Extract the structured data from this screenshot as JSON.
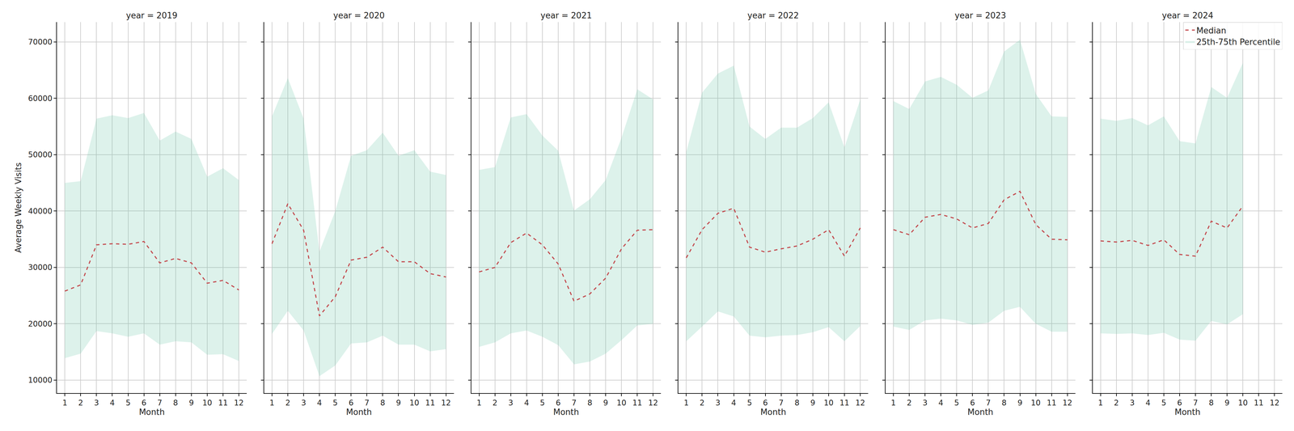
{
  "chart_data": [
    {
      "type": "line",
      "title": "year = 2019",
      "x_label": "Month",
      "y_label": "Average Weekly Visits",
      "x": [
        1,
        2,
        3,
        4,
        5,
        6,
        7,
        8,
        9,
        10,
        11,
        12
      ],
      "xlim": [
        0.5,
        12.5
      ],
      "xticks": [
        1,
        2,
        3,
        4,
        5,
        6,
        7,
        8,
        9,
        10,
        11,
        12
      ],
      "ylim": [
        7700,
        73500
      ],
      "yticks": [
        10000,
        20000,
        30000,
        40000,
        50000,
        60000,
        70000
      ],
      "grid": true,
      "series": [
        {
          "name": "25th-75th Percentile",
          "type": "band",
          "color": "#66c2a5",
          "lower": [
            13900,
            14700,
            18700,
            18300,
            17700,
            18300,
            16300,
            16900,
            16700,
            14500,
            14600,
            13400
          ],
          "upper": [
            45000,
            45300,
            56400,
            57000,
            56500,
            57400,
            52500,
            54100,
            52800,
            46100,
            47600,
            45500
          ]
        },
        {
          "name": "Median",
          "type": "line",
          "color": "#c44e52",
          "line_style": "dashed",
          "values": [
            25800,
            26900,
            34000,
            34200,
            34100,
            34600,
            30800,
            31600,
            30800,
            27200,
            27700,
            26000
          ]
        }
      ]
    },
    {
      "type": "line",
      "title": "year = 2020",
      "x_label": "Month",
      "tick_labels": "x",
      "x": [
        1,
        2,
        3,
        4,
        5,
        6,
        7,
        8,
        9,
        10,
        11,
        12
      ],
      "xlim": [
        0.5,
        12.5
      ],
      "xticks": [
        1,
        2,
        3,
        4,
        5,
        6,
        7,
        8,
        9,
        10,
        11,
        12
      ],
      "ylim": [
        7700,
        73500
      ],
      "yticks": [
        10000,
        20000,
        30000,
        40000,
        50000,
        60000,
        70000
      ],
      "grid": true,
      "series": [
        {
          "name": "25th-75th Percentile",
          "type": "band",
          "color": "#66c2a5",
          "lower": [
            18200,
            22300,
            18800,
            10700,
            12600,
            16500,
            16700,
            17900,
            16300,
            16300,
            15100,
            15500
          ],
          "upper": [
            56800,
            63600,
            56400,
            32800,
            40000,
            49800,
            50800,
            53900,
            49800,
            50800,
            47000,
            46400
          ]
        },
        {
          "name": "Median",
          "type": "line",
          "color": "#c44e52",
          "line_style": "dashed",
          "values": [
            34200,
            41300,
            36600,
            21400,
            24800,
            31300,
            31800,
            33600,
            31000,
            31000,
            28900,
            28300
          ]
        }
      ]
    },
    {
      "type": "line",
      "title": "year = 2021",
      "x_label": "Month",
      "tick_labels": "x",
      "x": [
        1,
        2,
        3,
        4,
        5,
        6,
        7,
        8,
        9,
        10,
        11,
        12
      ],
      "xlim": [
        0.5,
        12.5
      ],
      "xticks": [
        1,
        2,
        3,
        4,
        5,
        6,
        7,
        8,
        9,
        10,
        11,
        12
      ],
      "ylim": [
        7700,
        73500
      ],
      "yticks": [
        10000,
        20000,
        30000,
        40000,
        50000,
        60000,
        70000
      ],
      "grid": true,
      "series": [
        {
          "name": "25th-75th Percentile",
          "type": "band",
          "color": "#66c2a5",
          "lower": [
            15900,
            16700,
            18300,
            18800,
            17700,
            16200,
            12800,
            13300,
            14700,
            17100,
            19700,
            20000
          ],
          "upper": [
            47300,
            47800,
            56600,
            57200,
            53400,
            50700,
            40100,
            42100,
            45500,
            53000,
            61600,
            59800
          ]
        },
        {
          "name": "Median",
          "type": "line",
          "color": "#c44e52",
          "line_style": "dashed",
          "values": [
            29200,
            30000,
            34400,
            36100,
            34000,
            30600,
            24000,
            25300,
            28100,
            33300,
            36600,
            36700
          ]
        }
      ]
    },
    {
      "type": "line",
      "title": "year = 2022",
      "x_label": "Month",
      "tick_labels": "x",
      "x": [
        1,
        2,
        3,
        4,
        5,
        6,
        7,
        8,
        9,
        10,
        11,
        12
      ],
      "xlim": [
        0.5,
        12.5
      ],
      "xticks": [
        1,
        2,
        3,
        4,
        5,
        6,
        7,
        8,
        9,
        10,
        11,
        12
      ],
      "ylim": [
        7700,
        73500
      ],
      "yticks": [
        10000,
        20000,
        30000,
        40000,
        50000,
        60000,
        70000
      ],
      "grid": true,
      "series": [
        {
          "name": "25th-75th Percentile",
          "type": "band",
          "color": "#66c2a5",
          "lower": [
            16900,
            19500,
            22200,
            21300,
            17900,
            17600,
            17900,
            18000,
            18500,
            19400,
            16900,
            19600
          ],
          "upper": [
            50500,
            61000,
            64400,
            65800,
            55000,
            52800,
            54800,
            54800,
            56500,
            59300,
            51300,
            59800
          ]
        },
        {
          "name": "Median",
          "type": "line",
          "color": "#c44e52",
          "line_style": "dashed",
          "values": [
            31700,
            36700,
            39600,
            40500,
            33600,
            32700,
            33300,
            33800,
            35000,
            36700,
            32000,
            37000
          ]
        }
      ]
    },
    {
      "type": "line",
      "title": "year = 2023",
      "x_label": "Month",
      "tick_labels": "x",
      "x": [
        1,
        2,
        3,
        4,
        5,
        6,
        7,
        8,
        9,
        10,
        11,
        12
      ],
      "xlim": [
        0.5,
        12.5
      ],
      "xticks": [
        1,
        2,
        3,
        4,
        5,
        6,
        7,
        8,
        9,
        10,
        11,
        12
      ],
      "ylim": [
        7700,
        73500
      ],
      "yticks": [
        10000,
        20000,
        30000,
        40000,
        50000,
        60000,
        70000
      ],
      "grid": true,
      "series": [
        {
          "name": "25th-75th Percentile",
          "type": "band",
          "color": "#66c2a5",
          "lower": [
            19500,
            18900,
            20600,
            20900,
            20600,
            19800,
            20200,
            22300,
            23000,
            20000,
            18600,
            18600
          ],
          "upper": [
            59500,
            58100,
            63000,
            63800,
            62400,
            60100,
            61400,
            68300,
            70400,
            60800,
            56800,
            56700
          ]
        },
        {
          "name": "Median",
          "type": "line",
          "color": "#c44e52",
          "line_style": "dashed",
          "values": [
            36700,
            35800,
            38900,
            39400,
            38600,
            37000,
            37800,
            42000,
            43500,
            37600,
            35000,
            34900
          ]
        }
      ]
    },
    {
      "type": "line",
      "title": "year = 2024",
      "x_label": "Month",
      "tick_labels": "x",
      "legend": "upper right",
      "x": [
        1,
        2,
        3,
        4,
        5,
        6,
        7,
        8,
        9,
        10
      ],
      "xlim": [
        0.5,
        12.5
      ],
      "xticks": [
        1,
        2,
        3,
        4,
        5,
        6,
        7,
        8,
        9,
        10,
        11,
        12
      ],
      "ylim": [
        7700,
        73500
      ],
      "yticks": [
        10000,
        20000,
        30000,
        40000,
        50000,
        60000,
        70000
      ],
      "grid": true,
      "series": [
        {
          "name": "25th-75th Percentile",
          "type": "band",
          "color": "#66c2a5",
          "lower": [
            18300,
            18200,
            18300,
            18000,
            18400,
            17200,
            17000,
            20500,
            19900,
            21700
          ],
          "upper": [
            56400,
            56000,
            56500,
            55200,
            56800,
            52400,
            52000,
            62000,
            60100,
            66300
          ]
        },
        {
          "name": "Median",
          "type": "line",
          "color": "#c44e52",
          "line_style": "dashed",
          "values": [
            34700,
            34500,
            34800,
            33900,
            34900,
            32300,
            32000,
            38200,
            37000,
            40900
          ]
        }
      ]
    }
  ]
}
